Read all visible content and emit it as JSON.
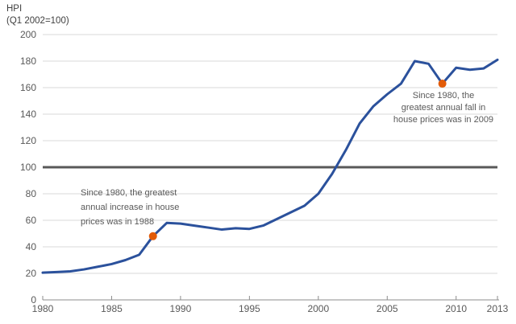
{
  "title": {
    "line1": "HPI",
    "line2": "(Q1 2002=100)"
  },
  "chart_data": {
    "type": "line",
    "x": [
      1980,
      1981,
      1982,
      1983,
      1984,
      1985,
      1986,
      1987,
      1988,
      1989,
      1990,
      1991,
      1992,
      1993,
      1994,
      1995,
      1996,
      1997,
      1998,
      1999,
      2000,
      2001,
      2002,
      2003,
      2004,
      2005,
      2006,
      2007,
      2008,
      2009,
      2010,
      2011,
      2012,
      2013
    ],
    "series": [
      {
        "name": "HPI (Q1 2002=100)",
        "values": [
          20.5,
          21,
          21.5,
          23,
          25,
          27,
          30,
          34,
          48,
          58,
          57.5,
          56,
          54.5,
          53,
          54,
          53.5,
          56,
          61,
          66,
          71,
          80,
          95,
          113,
          133,
          146,
          155,
          163,
          180,
          178,
          163,
          175,
          173.5,
          174.5,
          181
        ]
      }
    ],
    "title": "HPI (Q1 2002=100)",
    "xlabel": "",
    "ylabel": "HPI (Q1 2002=100)",
    "xlim": [
      1980,
      2013
    ],
    "ylim": [
      0,
      200
    ],
    "x_ticks": [
      1980,
      1985,
      1990,
      1995,
      2000,
      2005,
      2010,
      2013
    ],
    "y_ticks": [
      0,
      20,
      40,
      60,
      80,
      100,
      120,
      140,
      160,
      180,
      200
    ],
    "grid": "horizontal",
    "reference_line": 100,
    "legend": "none",
    "markers": [
      {
        "year": 1988,
        "value": 48
      },
      {
        "year": 2009,
        "value": 163
      }
    ]
  },
  "annotations": [
    {
      "lines": [
        "Since 1980, the greatest",
        "annual increase in house",
        "prices was in 1988"
      ]
    },
    {
      "lines": [
        "Since 1980, the",
        "greatest annual fall in",
        "house prices was in 2009"
      ]
    }
  ],
  "colors": {
    "line": "#2b519c",
    "marker": "#e25b08",
    "grid": "#d9d9d9",
    "reference": "#595959",
    "axis": "#8c8c8c",
    "text": "#595959",
    "title_text": "#404040"
  }
}
